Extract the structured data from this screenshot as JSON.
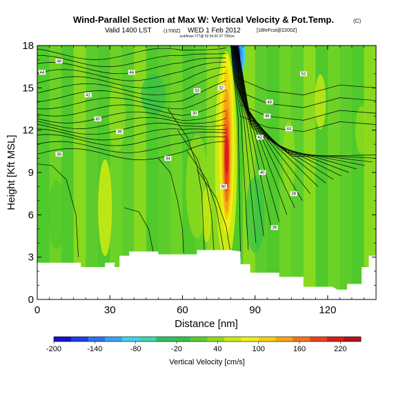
{
  "chart_data": {
    "type": "heatmap",
    "title": "Wind-Parallel Section at Max W: Vertical Velocity & Pot.Temp.",
    "title_mark": "(C)",
    "subtitle_valid": "Valid 1400 LST",
    "subtitle_utc": "(1700Z)",
    "subtitle_date": "WED 1 Feb 2012",
    "subtitle_run": "[18hrFcst@2200Z]",
    "subtitle_line2": "ucd/lmax-777@ 52 54.91 07 735/vo",
    "xlabel": "Distance [nm]",
    "ylabel": "Height [Kft MSL]",
    "xlim": [
      0,
      140
    ],
    "ylim": [
      0,
      18
    ],
    "x_ticks": [
      0,
      30,
      60,
      90,
      120
    ],
    "y_ticks": [
      0,
      3,
      6,
      9,
      12,
      15,
      18
    ],
    "colorbar_label": "Vertical Velocity [cm/s]",
    "colorbar_ticks": [
      -200,
      -140,
      -80,
      -20,
      40,
      100,
      160,
      220
    ],
    "colorbar_range": [
      -200,
      250
    ],
    "colorbar_colors": [
      "#1a0fcc",
      "#1f3fe0",
      "#2f6ff0",
      "#3aa3f0",
      "#3fd2e6",
      "#39d6b0",
      "#2ebd6b",
      "#35c24a",
      "#5ccc2d",
      "#8fdc1c",
      "#c9ea12",
      "#f0f010",
      "#f5cf12",
      "#f6a416",
      "#f27418",
      "#e8441b",
      "#d21f1b",
      "#b3121b"
    ],
    "theta_contour_labels": [
      "48",
      "46",
      "44",
      "42",
      "40",
      "38",
      "36",
      "34",
      "33",
      "32",
      "30",
      "50",
      "52"
    ],
    "max_updraft_distance_nm": 78,
    "max_downdraft_distance_nm": 82,
    "terrain": [
      [
        0,
        2.6
      ],
      [
        18,
        2.6
      ],
      [
        18,
        2.3
      ],
      [
        28,
        2.3
      ],
      [
        28,
        2.6
      ],
      [
        32,
        2.6
      ],
      [
        32,
        2.3
      ],
      [
        34,
        2.3
      ],
      [
        34,
        3.1
      ],
      [
        38,
        3.1
      ],
      [
        38,
        3.4
      ],
      [
        50,
        3.4
      ],
      [
        50,
        3.2
      ],
      [
        66,
        3.2
      ],
      [
        66,
        3.5
      ],
      [
        80,
        3.5
      ],
      [
        80,
        3.5
      ],
      [
        84,
        3.4
      ],
      [
        84,
        2.5
      ],
      [
        88,
        2.5
      ],
      [
        88,
        1.9
      ],
      [
        100,
        1.9
      ],
      [
        100,
        1.6
      ],
      [
        110,
        1.6
      ],
      [
        110,
        0.9
      ],
      [
        122,
        0.9
      ],
      [
        124,
        0.7
      ],
      [
        128,
        0.7
      ],
      [
        128,
        1.1
      ],
      [
        134,
        1.1
      ],
      [
        134,
        2.3
      ],
      [
        137,
        2.3
      ],
      [
        137,
        3.1
      ],
      [
        140,
        3.1
      ]
    ]
  }
}
